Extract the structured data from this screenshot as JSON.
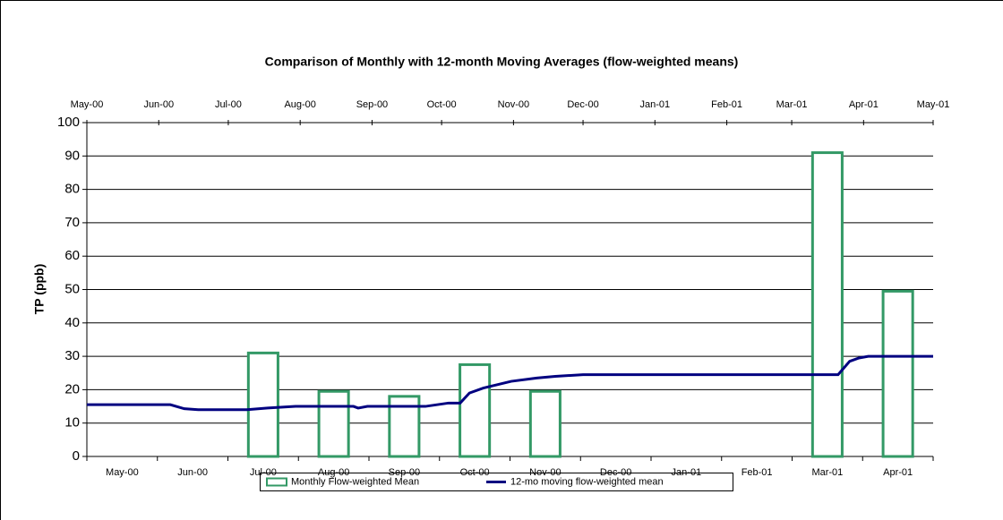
{
  "chart_data": {
    "type": "bar",
    "title": "Comparison of Monthly with 12-month Moving Averages (flow-weighted means)",
    "y_label": "TP (ppb)",
    "categories": [
      "May-00",
      "Jun-00",
      "Jul-00",
      "Aug-00",
      "Sep-00",
      "Oct-00",
      "Nov-00",
      "Dec-00",
      "Jan-01",
      "Feb-01",
      "Mar-01",
      "Apr-01"
    ],
    "ylim": [
      0,
      100
    ],
    "yticks": [
      0,
      10,
      20,
      30,
      40,
      50,
      60,
      70,
      80,
      90,
      100
    ],
    "grid": true,
    "x2lim": [
      0,
      365
    ],
    "x2ticks": [
      {
        "value": 0,
        "label": "May-00"
      },
      {
        "value": 31,
        "label": "Jun-00"
      },
      {
        "value": 61,
        "label": "Jul-00"
      },
      {
        "value": 92,
        "label": "Aug-00"
      },
      {
        "value": 123,
        "label": "Sep-00"
      },
      {
        "value": 153,
        "label": "Oct-00"
      },
      {
        "value": 184,
        "label": "Nov-00"
      },
      {
        "value": 214,
        "label": "Dec-00"
      },
      {
        "value": 245,
        "label": "Jan-01"
      },
      {
        "value": 276,
        "label": "Feb-01"
      },
      {
        "value": 304,
        "label": "Mar-01"
      },
      {
        "value": 335,
        "label": "Apr-01"
      },
      {
        "value": 365,
        "label": "May-01"
      }
    ],
    "legend": "bottom",
    "series": [
      {
        "name": "Monthly Flow-weighted Mean",
        "type": "bar",
        "color": "#339966",
        "values": [
          null,
          null,
          31,
          19.5,
          18,
          27.5,
          19.5,
          null,
          null,
          null,
          91,
          49.5
        ]
      },
      {
        "name": "12-mo moving flow-weighted mean",
        "type": "line",
        "color": "#000080",
        "axis": "x2",
        "x": [
          0,
          36,
          42,
          48,
          69,
          78,
          90,
          115,
          117,
          121,
          146,
          156,
          161,
          165,
          171,
          183,
          194,
          202,
          214,
          233,
          324,
          329,
          333,
          337,
          365
        ],
        "values": [
          15.5,
          15.5,
          14.3,
          14,
          14,
          14.5,
          15,
          15,
          14.5,
          15,
          15,
          16,
          16,
          19,
          20.5,
          22.5,
          23.5,
          24,
          24.5,
          24.5,
          24.5,
          28.5,
          29.5,
          30,
          30
        ]
      }
    ]
  }
}
